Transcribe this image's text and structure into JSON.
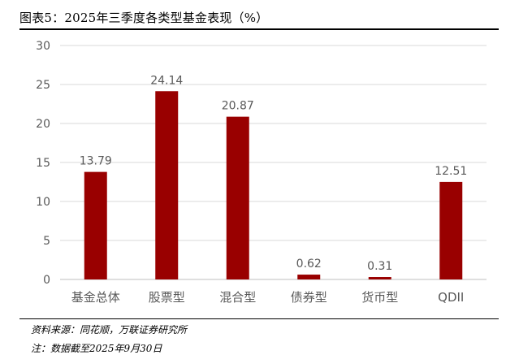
{
  "figure": {
    "title": "图表5：2025年三季度各类型基金表现（%）",
    "source": "资料来源：同花顺，万联证券研究所",
    "note": "注：数据截至2025年9月30日"
  },
  "colors": {
    "bar": "#990000",
    "grid": "#d9d9d9",
    "axis": "#bfbfbf",
    "text": "#595959"
  },
  "chart_data": {
    "type": "bar",
    "categories": [
      "基金总体",
      "股票型",
      "混合型",
      "债券型",
      "货币型",
      "QDII"
    ],
    "values": [
      13.79,
      24.14,
      20.87,
      0.62,
      0.31,
      12.51
    ],
    "value_labels": [
      "13.79",
      "24.14",
      "20.87",
      "0.62",
      "0.31",
      "12.51"
    ],
    "ylim": [
      0,
      30
    ],
    "yticks": [
      0,
      5,
      10,
      15,
      20,
      25,
      30
    ],
    "grid": true,
    "legend": "none"
  }
}
